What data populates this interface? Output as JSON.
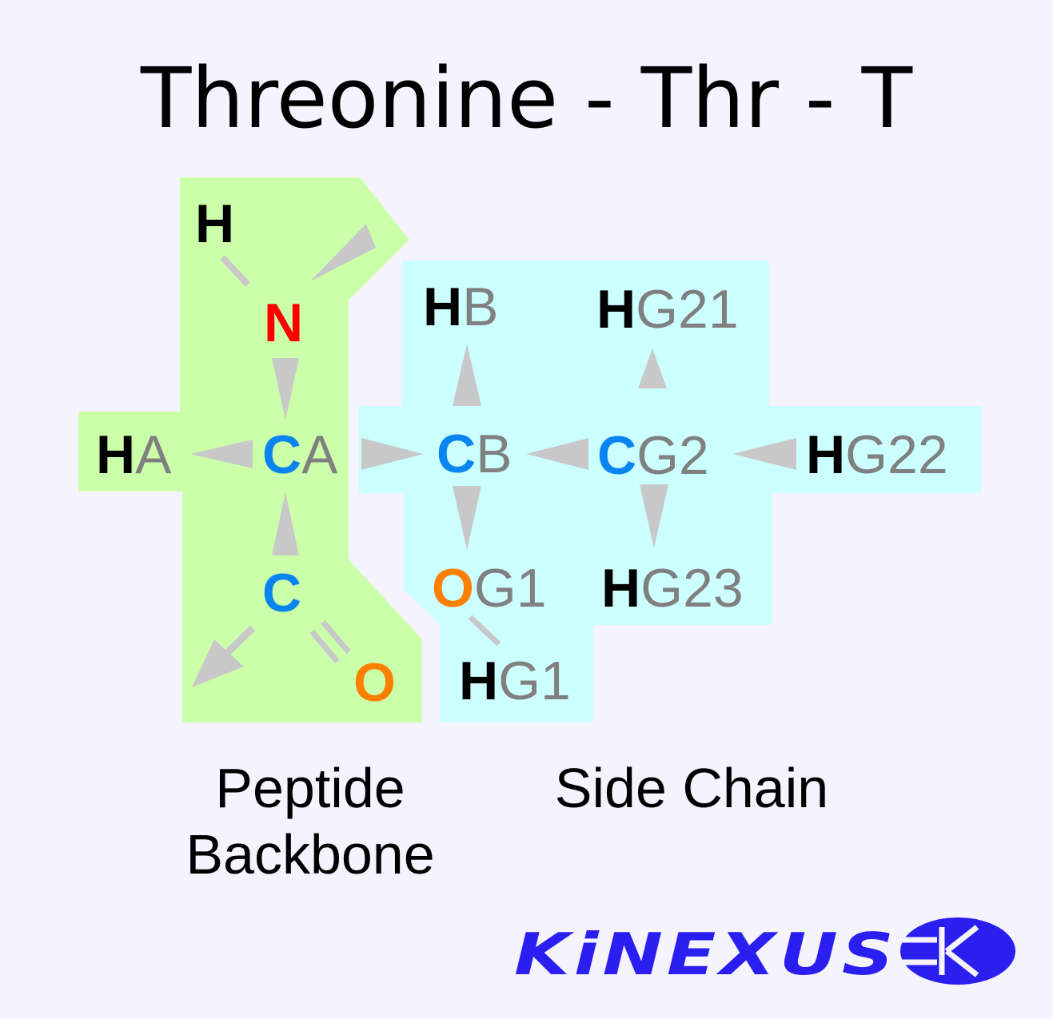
{
  "title": "Threonine - Thr - T",
  "colors": {
    "background": "#f4f3fe",
    "backbone_region": "#ccffaa",
    "side_chain_region": "#ccffff",
    "arrow": "#c8c8c8",
    "hydrogen": "#000000",
    "nitrogen": "#ff0000",
    "carbon": "#0a84f0",
    "oxygen": "#ff8000",
    "suffix": "#808080",
    "logo": "#2a1ef0"
  },
  "atoms": {
    "h_amine": {
      "element": "H",
      "suffix": ""
    },
    "n": {
      "element": "N",
      "suffix": ""
    },
    "ha": {
      "element": "H",
      "suffix": "A"
    },
    "ca": {
      "element": "C",
      "suffix": "A"
    },
    "c": {
      "element": "C",
      "suffix": ""
    },
    "o": {
      "element": "O",
      "suffix": ""
    },
    "cb": {
      "element": "C",
      "suffix": "B"
    },
    "hb": {
      "element": "H",
      "suffix": "B"
    },
    "og1": {
      "element": "O",
      "suffix": "G1"
    },
    "hg1": {
      "element": "H",
      "suffix": "G1"
    },
    "cg2": {
      "element": "C",
      "suffix": "G2"
    },
    "hg21": {
      "element": "H",
      "suffix": "G21"
    },
    "hg22": {
      "element": "H",
      "suffix": "G22"
    },
    "hg23": {
      "element": "H",
      "suffix": "G23"
    }
  },
  "labels": {
    "backbone_line1": "Peptide",
    "backbone_line2": "Backbone",
    "side_chain": "Side Chain"
  },
  "logo": {
    "text": "KiNEXUS",
    "icon": "kinexus-k-oval-icon"
  }
}
